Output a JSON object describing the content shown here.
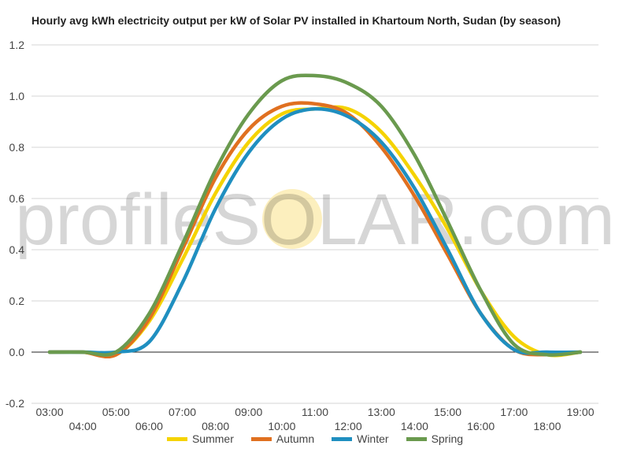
{
  "chart_data": {
    "type": "line",
    "title": "Hourly avg kWh electricity output per kW of Solar PV installed in Khartoum North, Sudan (by season)",
    "xlabel": "",
    "ylabel": "",
    "x": [
      "03:00",
      "04:00",
      "05:00",
      "06:00",
      "07:00",
      "08:00",
      "09:00",
      "10:00",
      "11:00",
      "12:00",
      "13:00",
      "14:00",
      "15:00",
      "16:00",
      "17:00",
      "18:00",
      "19:00"
    ],
    "ylim": [
      -0.2,
      1.2
    ],
    "yticks": [
      "-0.2",
      "0.0",
      "0.2",
      "0.4",
      "0.6",
      "0.8",
      "1.0",
      "1.2"
    ],
    "grid": true,
    "legend_position": "bottom",
    "series": [
      {
        "name": "Summer",
        "color": "#f5d300",
        "values": [
          0,
          0,
          -0.01,
          0.12,
          0.36,
          0.62,
          0.82,
          0.93,
          0.95,
          0.95,
          0.86,
          0.69,
          0.48,
          0.24,
          0.06,
          -0.01,
          0
        ]
      },
      {
        "name": "Autumn",
        "color": "#e07020",
        "values": [
          0,
          0,
          -0.01,
          0.13,
          0.4,
          0.68,
          0.87,
          0.96,
          0.97,
          0.93,
          0.8,
          0.61,
          0.38,
          0.15,
          0.01,
          -0.01,
          0
        ]
      },
      {
        "name": "Winter",
        "color": "#1f8fc0",
        "values": [
          0,
          0,
          0,
          0.04,
          0.27,
          0.56,
          0.78,
          0.91,
          0.95,
          0.92,
          0.82,
          0.64,
          0.4,
          0.15,
          0.01,
          0,
          0
        ]
      },
      {
        "name": "Spring",
        "color": "#6a9a4e",
        "values": [
          0,
          0,
          0,
          0.15,
          0.42,
          0.71,
          0.93,
          1.06,
          1.08,
          1.05,
          0.96,
          0.77,
          0.51,
          0.24,
          0.03,
          -0.01,
          0
        ]
      }
    ],
    "watermark": "profileSOLAR.com"
  }
}
